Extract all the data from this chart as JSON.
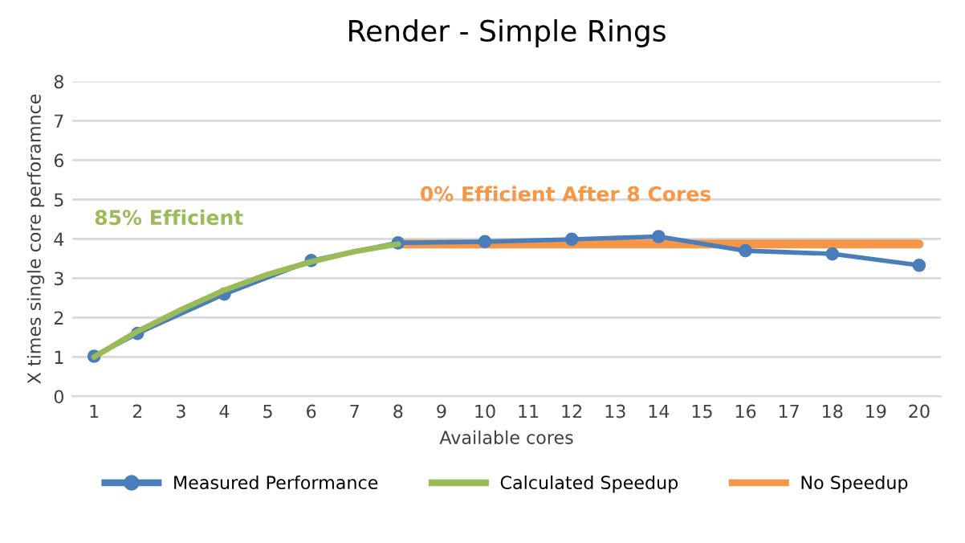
{
  "chart_data": {
    "type": "line",
    "title": "Render - Simple Rings",
    "xlabel": "Available cores",
    "ylabel": "X times single core perforamnce",
    "xlim": [
      0.5,
      20.5
    ],
    "xticks": [
      1,
      2,
      3,
      4,
      5,
      6,
      7,
      8,
      9,
      10,
      11,
      12,
      13,
      14,
      15,
      16,
      17,
      18,
      19,
      20
    ],
    "ylim": [
      0,
      8
    ],
    "yticks": [
      0,
      1,
      2,
      3,
      4,
      5,
      6,
      7,
      8
    ],
    "grid": "y",
    "legend": "bottom",
    "series": [
      {
        "name": "Measured Performance",
        "color": "#4a7ebb",
        "marker": "circle",
        "x": [
          1,
          2,
          4,
          6,
          8,
          10,
          12,
          14,
          16,
          18,
          20
        ],
        "values": [
          1.02,
          1.6,
          2.6,
          3.45,
          3.9,
          3.93,
          3.99,
          4.06,
          3.7,
          3.62,
          3.33
        ]
      },
      {
        "name": "Calculated Speedup",
        "color": "#9bbb59",
        "marker": "none",
        "x": [
          1,
          2,
          3,
          4,
          5,
          6,
          7,
          8
        ],
        "values": [
          1,
          1.65,
          2.2,
          2.7,
          3.1,
          3.42,
          3.68,
          3.87
        ]
      },
      {
        "name": "No Speedup",
        "color": "#f79646",
        "marker": "none",
        "x": [
          8,
          20
        ],
        "values": [
          3.87,
          3.87
        ]
      }
    ],
    "annotations": [
      "85% Efficient",
      "0% Efficient After 8 Cores"
    ]
  }
}
